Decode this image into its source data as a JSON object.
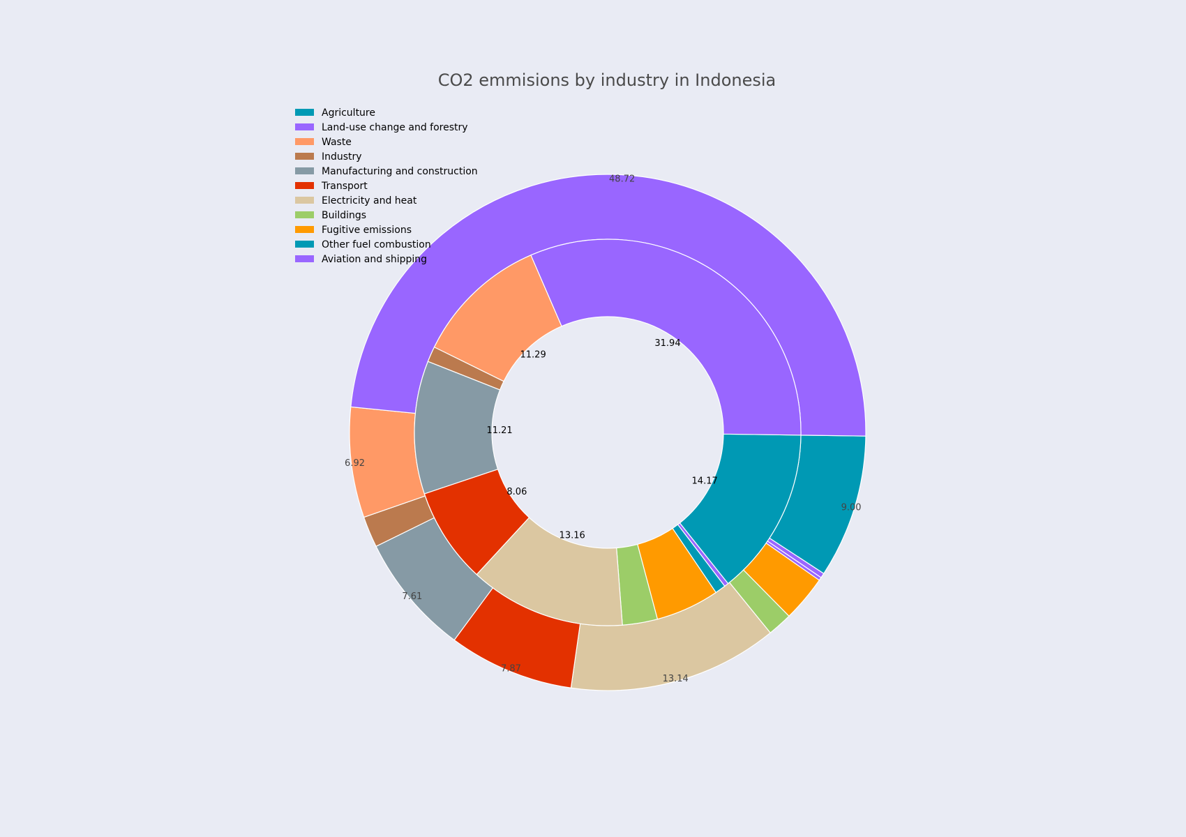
{
  "chart_data": {
    "type": "pie",
    "subtype": "nested-donut",
    "title": "CO2 emmisions by industry in Indonesia",
    "legend_position": "top-left",
    "colors": {
      "Agriculture": "#0099b4",
      "Land-use change and forestry": "#9966ff",
      "Waste": "#ff9966",
      "Industry": "#bb7a4e",
      "Manufacturing and construction": "#869aa5",
      "Transport": "#e33100",
      "Electricity and heat": "#dbc7a1",
      "Buildings": "#9ccd68",
      "Fugitive emissions": "#ff9a00",
      "Other fuel combustion": "#0099b4",
      "Aviation and shipping": "#9966ff"
    },
    "legend": [
      "Agriculture",
      "Land-use change and forestry",
      "Waste",
      "Industry",
      "Manufacturing and construction",
      "Transport",
      "Electricity and heat",
      "Buildings",
      "Fugitive emissions",
      "Other fuel combustion",
      "Aviation and shipping"
    ],
    "outer_ring": [
      {
        "category": "Agriculture",
        "value": 9.0,
        "label": "9.00"
      },
      {
        "category": "Aviation and shipping",
        "value": 0.3,
        "label": ""
      },
      {
        "category": "Land-use change and forestry",
        "value": 0.2,
        "label": ""
      },
      {
        "category": "Fugitive emissions",
        "value": 2.9,
        "label": ""
      },
      {
        "category": "Buildings",
        "value": 1.55,
        "label": ""
      },
      {
        "category": "Electricity and heat",
        "value": 13.14,
        "label": "13.14"
      },
      {
        "category": "Transport",
        "value": 7.87,
        "label": "7.87"
      },
      {
        "category": "Manufacturing and construction",
        "value": 7.61,
        "label": "7.61"
      },
      {
        "category": "Industry",
        "value": 1.95,
        "label": ""
      },
      {
        "category": "Waste",
        "value": 6.92,
        "label": "6.92"
      },
      {
        "category": "Land-use change and forestry",
        "value": 48.72,
        "label": "48.72"
      }
    ],
    "inner_ring": [
      {
        "category": "Agriculture",
        "value": 14.17,
        "label": "14.17"
      },
      {
        "category": "Aviation and shipping",
        "value": 0.35,
        "label": ""
      },
      {
        "category": "Other fuel combustion",
        "value": 0.9,
        "label": ""
      },
      {
        "category": "Fugitive emissions",
        "value": 5.35,
        "label": ""
      },
      {
        "category": "Buildings",
        "value": 2.95,
        "label": ""
      },
      {
        "category": "Electricity and heat",
        "value": 13.16,
        "label": "13.16"
      },
      {
        "category": "Transport",
        "value": 8.06,
        "label": "8.06"
      },
      {
        "category": "Manufacturing and construction",
        "value": 11.21,
        "label": "11.21"
      },
      {
        "category": "Industry",
        "value": 1.3,
        "label": ""
      },
      {
        "category": "Waste",
        "value": 11.29,
        "label": "11.29"
      },
      {
        "category": "Land-use change and forestry",
        "value": 31.94,
        "label": "31.94"
      }
    ]
  }
}
